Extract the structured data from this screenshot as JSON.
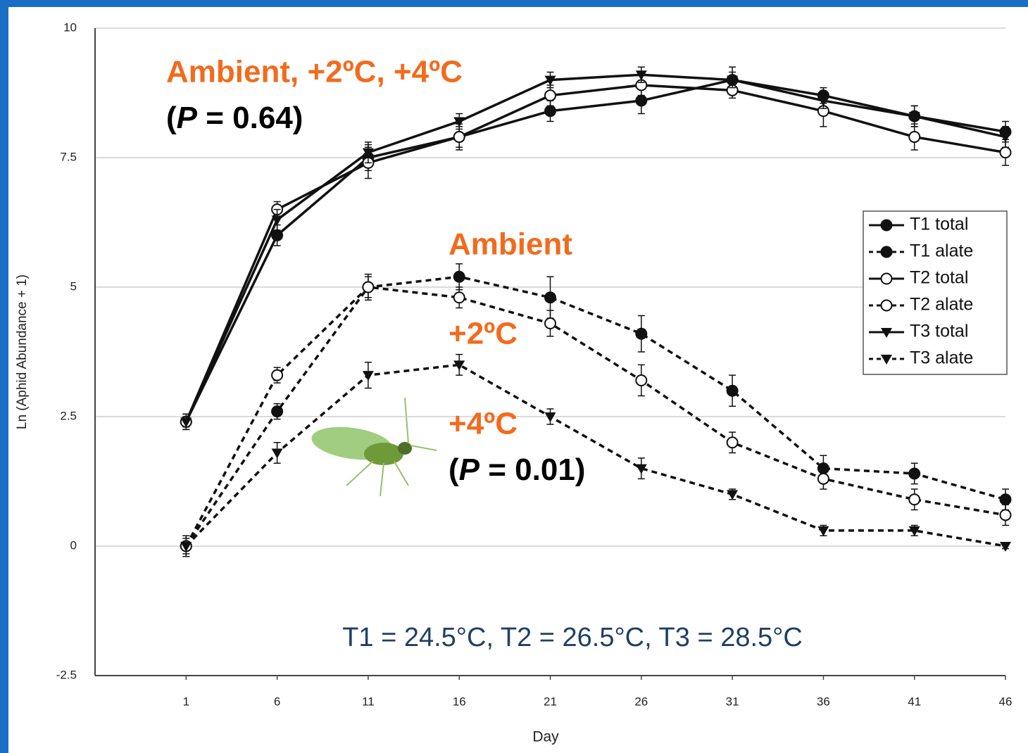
{
  "chart_data": {
    "type": "line",
    "x_label": "Day",
    "y_label": "Ln (Aphid Abundance + 1)",
    "x": [
      1,
      6,
      11,
      16,
      21,
      26,
      31,
      36,
      41,
      46
    ],
    "xlim": [
      -4,
      46
    ],
    "xticks": [
      1,
      6,
      11,
      16,
      21,
      26,
      31,
      36,
      41,
      46
    ],
    "ylim": [
      -2.5,
      10
    ],
    "yticks": [
      10,
      7.5,
      5,
      2.5,
      0,
      -2.5
    ],
    "grid": true,
    "legend": "right",
    "series": [
      {
        "name": "T1 total",
        "color": "#111111",
        "marker": "filled-circle",
        "dash": false,
        "values": [
          2.4,
          6.0,
          7.5,
          7.9,
          8.4,
          8.6,
          9.0,
          8.7,
          8.3,
          8.0
        ],
        "errors": [
          0.15,
          0.2,
          0.25,
          0.2,
          0.2,
          0.25,
          0.25,
          0.15,
          0.2,
          0.2
        ]
      },
      {
        "name": "T1 alate",
        "color": "#111111",
        "marker": "filled-circle",
        "dash": true,
        "values": [
          0.0,
          2.6,
          5.0,
          5.2,
          4.8,
          4.1,
          3.0,
          1.5,
          1.4,
          0.9
        ],
        "errors": [
          0.2,
          0.15,
          0.25,
          0.25,
          0.4,
          0.35,
          0.3,
          0.25,
          0.2,
          0.2
        ]
      },
      {
        "name": "T2 total",
        "color": "#111111",
        "marker": "open-circle",
        "dash": false,
        "values": [
          2.4,
          6.5,
          7.4,
          7.9,
          8.7,
          8.9,
          8.8,
          8.4,
          7.9,
          7.6
        ],
        "errors": [
          0.15,
          0.15,
          0.3,
          0.25,
          0.2,
          0.2,
          0.15,
          0.3,
          0.25,
          0.25
        ]
      },
      {
        "name": "T2 alate",
        "color": "#111111",
        "marker": "open-circle",
        "dash": true,
        "values": [
          0.0,
          3.3,
          5.0,
          4.8,
          4.3,
          3.2,
          2.0,
          1.3,
          0.9,
          0.6
        ],
        "errors": [
          0.2,
          0.15,
          0.2,
          0.2,
          0.25,
          0.3,
          0.2,
          0.2,
          0.2,
          0.2
        ]
      },
      {
        "name": "T3 total",
        "color": "#111111",
        "marker": "down-triangle",
        "dash": false,
        "values": [
          2.4,
          6.3,
          7.6,
          8.2,
          9.0,
          9.1,
          9.0,
          8.6,
          8.3,
          7.9
        ],
        "errors": [
          0.1,
          0.2,
          0.2,
          0.15,
          0.15,
          0.15,
          0.15,
          0.15,
          0.2,
          0.2
        ]
      },
      {
        "name": "T3 alate",
        "color": "#111111",
        "marker": "down-triangle",
        "dash": true,
        "values": [
          0.0,
          1.8,
          3.3,
          3.5,
          2.5,
          1.5,
          1.0,
          0.3,
          0.3,
          0.0
        ],
        "errors": [
          0.15,
          0.2,
          0.25,
          0.2,
          0.15,
          0.2,
          0.1,
          0.1,
          0.1,
          0.05
        ]
      }
    ],
    "annotations": [
      {
        "text": "Ambient, +2ºC, +4ºC",
        "color": "#f26b1d"
      },
      {
        "text": "Ambient",
        "color": "#f26b1d"
      },
      {
        "text": "+2ºC",
        "color": "#f26b1d"
      },
      {
        "text": "+4ºC",
        "color": "#f26b1d"
      }
    ],
    "p_values": [
      [
        "(",
        "P",
        " = 0.64)"
      ],
      [
        "(",
        "P",
        " = 0.01)"
      ]
    ],
    "footnote": "T1 = 24.5°C, T2 = 26.5°C, T3 = 28.5°C"
  }
}
